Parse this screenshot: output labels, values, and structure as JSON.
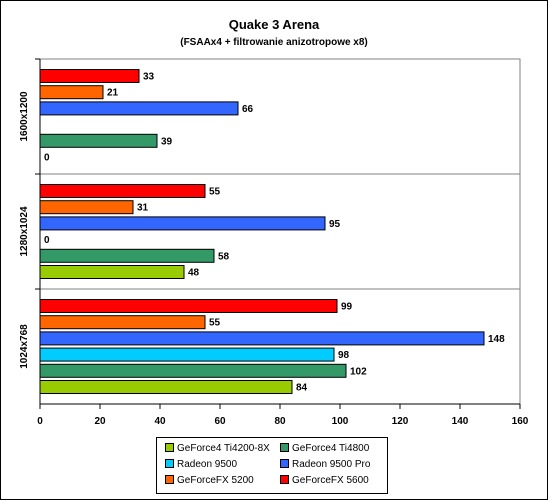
{
  "chart_data": {
    "type": "bar",
    "orientation": "horizontal",
    "title": "Quake 3 Arena",
    "subtitle": "(FSAAx4 + filtrowanie anizotropowe x8)",
    "categories": [
      "1600x1200",
      "1280x1024",
      "1024x768"
    ],
    "xlim": [
      0,
      160
    ],
    "xticks": [
      0,
      20,
      40,
      60,
      80,
      100,
      120,
      140,
      160
    ],
    "grid": "horizontal category separators",
    "legend_position": "bottom",
    "series": [
      {
        "name": "GeForce4 Ti4200-8X",
        "color": "#99cc00",
        "values": [
          0,
          48,
          84
        ]
      },
      {
        "name": "GeForce4 Ti4800",
        "color": "#339966",
        "values": [
          39,
          58,
          102
        ]
      },
      {
        "name": "Radeon 9500",
        "color": "#00ccff",
        "values": [
          null,
          0,
          98
        ]
      },
      {
        "name": "Radeon 9500 Pro",
        "color": "#3366ff",
        "values": [
          66,
          95,
          148
        ]
      },
      {
        "name": "GeForceFX 5200",
        "color": "#ff6600",
        "values": [
          21,
          31,
          55
        ]
      },
      {
        "name": "GeForceFX 5600",
        "color": "#ff0000",
        "values": [
          33,
          55,
          99
        ]
      }
    ]
  }
}
